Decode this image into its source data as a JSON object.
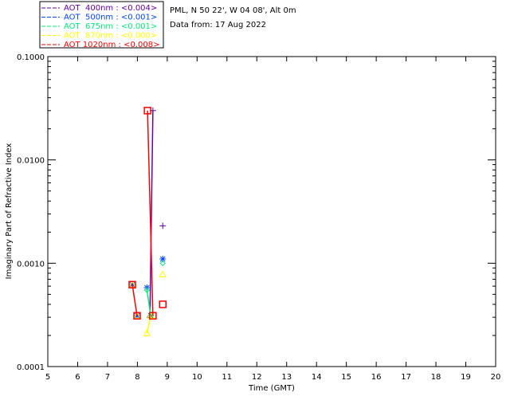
{
  "header": {
    "site": "PML, N 50 22', W 04 08', Alt 0m",
    "date": "Data from: 17 Aug 2022"
  },
  "chart_data": {
    "type": "scatter",
    "title": "",
    "xlabel": "Time (GMT)",
    "ylabel": "Imaginary Part of Refractive Index",
    "xlim": [
      5,
      20
    ],
    "ylim": [
      0.0001,
      0.1
    ],
    "yscale": "log",
    "xticks": [
      "5",
      "6",
      "7",
      "8",
      "9",
      "10",
      "11",
      "12",
      "13",
      "14",
      "15",
      "16",
      "17",
      "18",
      "19",
      "20"
    ],
    "yticks": [
      {
        "value": 0.1,
        "label": "0.1000"
      },
      {
        "value": 0.01,
        "label": "0.0100"
      },
      {
        "value": 0.001,
        "label": "0.0010"
      },
      {
        "value": 0.0001,
        "label": "0.0001"
      }
    ],
    "legend_placement": "top-left-outside",
    "series": [
      {
        "name": "AOT  400nm : <0.004>",
        "color": "#6600aa",
        "marker": "plus",
        "x": [
          8.52,
          8.42,
          8.85
        ],
        "y": [
          0.03,
          0.0003,
          0.0023
        ],
        "line_points": 2
      },
      {
        "name": "AOT  500nm : <0.001>",
        "color": "#0044ff",
        "marker": "star",
        "x": [
          7.83,
          7.99,
          8.32,
          8.45,
          8.85
        ],
        "y": [
          0.00062,
          0.00031,
          0.00058,
          0.00031,
          0.0011
        ],
        "line_points": 0
      },
      {
        "name": "AOT  675nm : <0.001>",
        "color": "#00ee77",
        "marker": "diamond",
        "x": [
          8.32,
          8.45,
          8.85
        ],
        "y": [
          0.00055,
          0.00031,
          0.001
        ],
        "line_points": 2
      },
      {
        "name": "AOT  870nm : <0.000>",
        "color": "#ffff00",
        "marker": "triangle",
        "x": [
          8.32,
          8.45,
          8.85,
          7.83,
          7.99
        ],
        "y": [
          0.00021,
          0.00031,
          0.00078,
          0.00062,
          0.00031
        ],
        "line_points": 2
      },
      {
        "name": "AOT 1020nm : <0.008>",
        "color": "#ff0000",
        "marker": "square",
        "x": [
          7.83,
          7.99,
          8.34,
          8.52,
          8.85
        ],
        "y": [
          0.00062,
          0.00031,
          0.03,
          0.00031,
          0.0004
        ],
        "line_segments": [
          [
            0,
            1
          ],
          [
            2,
            3
          ]
        ]
      }
    ]
  }
}
